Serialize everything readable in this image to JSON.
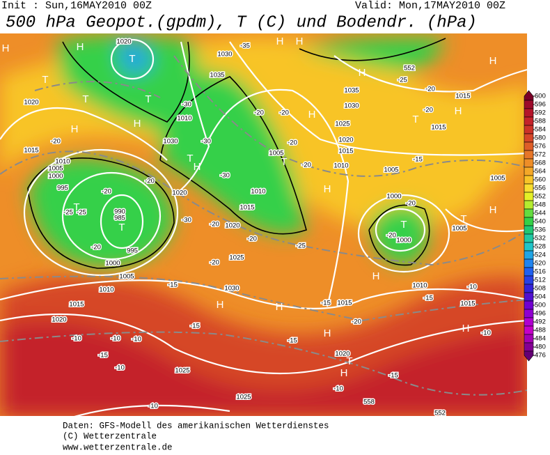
{
  "header": {
    "init": "Init : Sun,16MAY2010 00Z",
    "valid": "Valid: Mon,17MAY2010 00Z",
    "title": "500 hPa Geopot.(gpdm), T (C) und Bodendr. (hPa)"
  },
  "legend": {
    "levels": [
      600,
      596,
      592,
      588,
      584,
      580,
      576,
      572,
      568,
      564,
      560,
      556,
      552,
      548,
      544,
      540,
      536,
      532,
      528,
      524,
      520,
      516,
      512,
      508,
      504,
      500,
      496,
      492,
      488,
      484,
      480,
      476
    ],
    "colors": [
      "#7a0028",
      "#9c0a2a",
      "#b4142a",
      "#c4222a",
      "#cc3228",
      "#d64628",
      "#de5e28",
      "#e67628",
      "#ee8e28",
      "#f4a828",
      "#f8c428",
      "#f8de30",
      "#e4f028",
      "#b4ec30",
      "#64dc40",
      "#34d048",
      "#20c874",
      "#20c8a4",
      "#20c4c8",
      "#20a4e4",
      "#2084f0",
      "#2060f0",
      "#2840e4",
      "#3422d8",
      "#5010d0",
      "#7000d0",
      "#9000d0",
      "#b000d0",
      "#c400c8",
      "#a400b4",
      "#840094",
      "#640074"
    ]
  },
  "map": {
    "labels": [
      "H",
      "H",
      "1020",
      "T",
      "H",
      "H",
      "-35",
      "1030",
      "1035",
      "1035",
      "1030",
      "H",
      "-25",
      "552",
      "H",
      "-20",
      "1015",
      "H",
      "-20",
      "1015",
      "T",
      "H",
      "T",
      "1020",
      "T",
      "T",
      "H",
      "-30",
      "1010",
      "1030",
      "-30",
      "-20",
      "1025",
      "-20",
      "H",
      "-20",
      "1005",
      "T",
      "-20",
      "1010",
      "1015",
      "1020",
      "1005",
      "-15",
      "1005",
      "H",
      "1015",
      "-20",
      "1010",
      "1005",
      "1000",
      "995",
      "T",
      "-20",
      "-25",
      "-25",
      "990",
      "985",
      "T",
      "-30",
      "-20",
      "-20",
      "1020",
      "1020",
      "T",
      "H",
      "-30",
      "1010",
      "1015",
      "H",
      "1000",
      "-20",
      "T",
      "-20",
      "1000",
      "H",
      "1005",
      "T",
      "-25",
      "-20",
      "-20",
      "995",
      "1000",
      "1005",
      "1010",
      "1015",
      "1020",
      "-15",
      "1030",
      "1025",
      "H",
      "H",
      "-20",
      "-15",
      "1015",
      "H",
      "-20",
      "-15",
      "1010",
      "-15",
      "-10",
      "1015",
      "H",
      "-10",
      "-10",
      "-10",
      "-10",
      "-10",
      "-15",
      "1025",
      "-15",
      "1020",
      "T",
      "H",
      "-10",
      "-15",
      "1025",
      "-10",
      "558",
      "552"
    ]
  },
  "footer": {
    "lines": [
      "Daten: GFS-Modell des amerikanischen Wetterdienstes",
      "(C) Wetterzentrale",
      "www.wetterzentrale.de"
    ]
  }
}
